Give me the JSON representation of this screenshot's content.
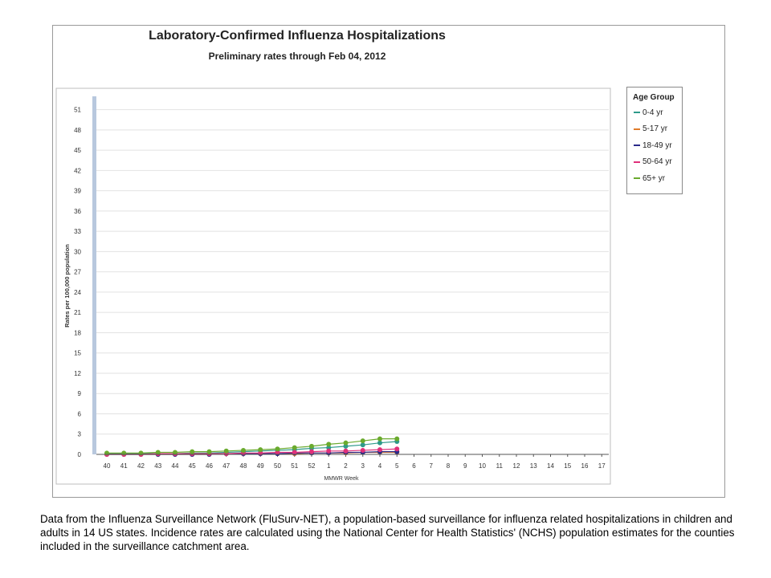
{
  "footnote": "Data from the Influenza Surveillance Network (FluSurv-NET),  a population-based surveillance for influenza related hospitalizations in children and adults in 14 US states.  Incidence rates are calculated using the National Center for Health Statistics' (NCHS) population estimates for the counties included in the surveillance  catchment area.",
  "chart_data": {
    "type": "line",
    "title": "Laboratory-Confirmed Influenza Hospitalizations",
    "subtitle": "Preliminary rates through Feb 04, 2012",
    "xlabel": "MMWR Week",
    "ylabel": "Rates per 100,000 population",
    "categories": [
      "40",
      "41",
      "42",
      "43",
      "44",
      "45",
      "46",
      "47",
      "48",
      "49",
      "50",
      "51",
      "52",
      "1",
      "2",
      "3",
      "4",
      "5",
      "6",
      "7",
      "8",
      "9",
      "10",
      "11",
      "12",
      "13",
      "14",
      "15",
      "16",
      "17"
    ],
    "yticks": [
      0,
      3,
      6,
      9,
      12,
      15,
      18,
      21,
      24,
      27,
      30,
      33,
      36,
      39,
      42,
      45,
      48,
      51
    ],
    "ylim": [
      0,
      53
    ],
    "grid": true,
    "legend_title": "Age Group",
    "legend_position": "right",
    "series": [
      {
        "name": "0-4 yr",
        "color": "#2e9a8a",
        "values": [
          0.1,
          0.1,
          0.1,
          0.1,
          0.1,
          0.2,
          0.2,
          0.3,
          0.4,
          0.5,
          0.6,
          0.7,
          0.9,
          1.0,
          1.2,
          1.4,
          1.7,
          1.9,
          null,
          null,
          null,
          null,
          null,
          null,
          null,
          null,
          null,
          null,
          null,
          null
        ]
      },
      {
        "name": "5-17 yr",
        "color": "#e07b2a",
        "values": [
          0.0,
          0.0,
          0.0,
          0.0,
          0.0,
          0.0,
          0.0,
          0.1,
          0.1,
          0.1,
          0.1,
          0.1,
          0.2,
          0.2,
          0.2,
          0.3,
          0.3,
          0.3,
          null,
          null,
          null,
          null,
          null,
          null,
          null,
          null,
          null,
          null,
          null,
          null
        ]
      },
      {
        "name": "18-49 yr",
        "color": "#2a2a8a",
        "values": [
          0.0,
          0.0,
          0.0,
          0.0,
          0.0,
          0.0,
          0.0,
          0.1,
          0.1,
          0.1,
          0.1,
          0.2,
          0.2,
          0.2,
          0.3,
          0.3,
          0.4,
          0.4,
          null,
          null,
          null,
          null,
          null,
          null,
          null,
          null,
          null,
          null,
          null,
          null
        ]
      },
      {
        "name": "50-64 yr",
        "color": "#e0307a",
        "values": [
          0.0,
          0.0,
          0.0,
          0.1,
          0.1,
          0.1,
          0.1,
          0.1,
          0.2,
          0.2,
          0.3,
          0.3,
          0.4,
          0.5,
          0.5,
          0.6,
          0.7,
          0.8,
          null,
          null,
          null,
          null,
          null,
          null,
          null,
          null,
          null,
          null,
          null,
          null
        ]
      },
      {
        "name": "65+ yr",
        "color": "#6aaa2e",
        "values": [
          0.2,
          0.2,
          0.2,
          0.3,
          0.3,
          0.4,
          0.4,
          0.5,
          0.6,
          0.7,
          0.8,
          1.0,
          1.2,
          1.5,
          1.7,
          2.0,
          2.3,
          2.3,
          null,
          null,
          null,
          null,
          null,
          null,
          null,
          null,
          null,
          null,
          null,
          null
        ]
      }
    ]
  }
}
